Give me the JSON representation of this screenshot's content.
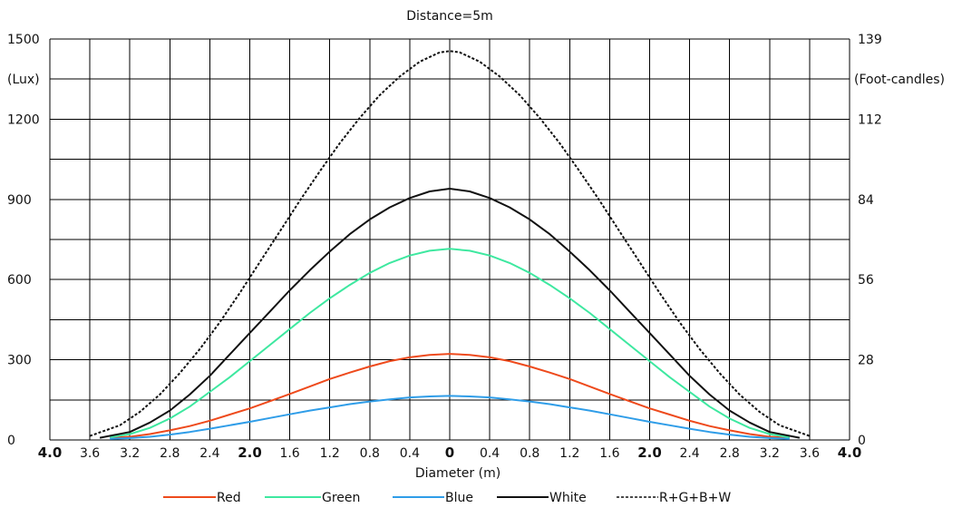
{
  "chart_data": {
    "type": "line",
    "title": "Distance=5m",
    "xlabel": "Diameter (m)",
    "ylabel_left": "(Lux)",
    "ylabel_right": "(Foot-candles)",
    "x_tick_labels": [
      "4.0",
      "3.6",
      "3.2",
      "2.8",
      "2.4",
      "2.0",
      "1.6",
      "1.2",
      "0.8",
      "0.4",
      "0",
      "0.4",
      "0.8",
      "1.2",
      "1.6",
      "2.0",
      "2.4",
      "2.8",
      "3.2",
      "3.6",
      "4.0"
    ],
    "x_bold_labels": [
      "4.0",
      "2.0",
      "0"
    ],
    "y_left_ticks": [
      0,
      300,
      600,
      900,
      1200,
      1500
    ],
    "y_right_ticks": [
      0,
      28,
      56,
      84,
      112,
      139
    ],
    "xlim": [
      -4.0,
      4.0
    ],
    "ylim": [
      0,
      1500
    ],
    "grid": true,
    "legend_position": "bottom",
    "series": [
      {
        "name": "Red",
        "color": "#ee4a1c",
        "dashed": false,
        "x": [
          -3.4,
          -3.2,
          -3.0,
          -2.8,
          -2.6,
          -2.4,
          -2.2,
          -2.0,
          -1.8,
          -1.6,
          -1.4,
          -1.2,
          -1.0,
          -0.8,
          -0.6,
          -0.4,
          -0.2,
          0,
          0.2,
          0.4,
          0.6,
          0.8,
          1.0,
          1.2,
          1.4,
          1.6,
          1.8,
          2.0,
          2.2,
          2.4,
          2.6,
          2.8,
          3.0,
          3.2,
          3.4
        ],
        "y": [
          8,
          12,
          22,
          36,
          52,
          72,
          95,
          118,
          145,
          172,
          200,
          228,
          252,
          275,
          295,
          309,
          318,
          322,
          318,
          309,
          295,
          275,
          252,
          228,
          200,
          172,
          145,
          118,
          95,
          72,
          52,
          36,
          22,
          12,
          8
        ]
      },
      {
        "name": "Green",
        "color": "#3ee8a0",
        "dashed": false,
        "x": [
          -3.4,
          -3.2,
          -3.0,
          -2.8,
          -2.6,
          -2.4,
          -2.2,
          -2.0,
          -1.8,
          -1.6,
          -1.4,
          -1.2,
          -1.0,
          -0.8,
          -0.6,
          -0.4,
          -0.2,
          0,
          0.2,
          0.4,
          0.6,
          0.8,
          1.0,
          1.2,
          1.4,
          1.6,
          1.8,
          2.0,
          2.2,
          2.4,
          2.6,
          2.8,
          3.0,
          3.2,
          3.4
        ],
        "y": [
          10,
          22,
          45,
          80,
          125,
          180,
          235,
          295,
          355,
          415,
          475,
          530,
          580,
          625,
          662,
          690,
          708,
          715,
          708,
          690,
          662,
          625,
          580,
          530,
          475,
          415,
          355,
          295,
          235,
          180,
          125,
          80,
          45,
          22,
          10
        ]
      },
      {
        "name": "Blue",
        "color": "#2f9de8",
        "dashed": false,
        "x": [
          -3.4,
          -3.2,
          -3.0,
          -2.8,
          -2.6,
          -2.4,
          -2.2,
          -2.0,
          -1.8,
          -1.6,
          -1.4,
          -1.2,
          -1.0,
          -0.8,
          -0.6,
          -0.4,
          -0.2,
          0,
          0.2,
          0.4,
          0.6,
          0.8,
          1.0,
          1.2,
          1.4,
          1.6,
          1.8,
          2.0,
          2.2,
          2.4,
          2.6,
          2.8,
          3.0,
          3.2,
          3.4
        ],
        "y": [
          4,
          7,
          12,
          20,
          30,
          42,
          55,
          68,
          82,
          96,
          110,
          122,
          134,
          144,
          152,
          159,
          163,
          165,
          163,
          159,
          152,
          144,
          134,
          122,
          110,
          96,
          82,
          68,
          55,
          42,
          30,
          20,
          12,
          7,
          4
        ]
      },
      {
        "name": "White",
        "color": "#111111",
        "dashed": false,
        "x": [
          -3.5,
          -3.2,
          -3.0,
          -2.8,
          -2.6,
          -2.4,
          -2.2,
          -2.0,
          -1.8,
          -1.6,
          -1.4,
          -1.2,
          -1.0,
          -0.8,
          -0.6,
          -0.4,
          -0.2,
          0,
          0.2,
          0.4,
          0.6,
          0.8,
          1.0,
          1.2,
          1.4,
          1.6,
          1.8,
          2.0,
          2.2,
          2.4,
          2.6,
          2.8,
          3.0,
          3.2,
          3.5
        ],
        "y": [
          8,
          30,
          65,
          110,
          170,
          240,
          320,
          400,
          480,
          560,
          635,
          705,
          770,
          825,
          870,
          905,
          930,
          940,
          930,
          905,
          870,
          825,
          770,
          705,
          635,
          560,
          480,
          400,
          320,
          240,
          170,
          110,
          65,
          30,
          8
        ]
      },
      {
        "name": "R+G+B+W",
        "color": "#111111",
        "dashed": true,
        "x": [
          -3.6,
          -3.3,
          -3.1,
          -2.9,
          -2.7,
          -2.5,
          -2.3,
          -2.1,
          -1.9,
          -1.7,
          -1.5,
          -1.3,
          -1.1,
          -0.9,
          -0.7,
          -0.5,
          -0.3,
          -0.1,
          0,
          0.1,
          0.3,
          0.5,
          0.7,
          0.9,
          1.1,
          1.3,
          1.5,
          1.7,
          1.9,
          2.1,
          2.3,
          2.5,
          2.7,
          2.9,
          3.1,
          3.3,
          3.6
        ],
        "y": [
          15,
          55,
          105,
          170,
          250,
          340,
          440,
          550,
          665,
          780,
          895,
          1005,
          1110,
          1205,
          1290,
          1360,
          1415,
          1450,
          1455,
          1450,
          1415,
          1360,
          1290,
          1205,
          1110,
          1005,
          895,
          780,
          665,
          550,
          440,
          340,
          250,
          170,
          105,
          55,
          15
        ]
      }
    ]
  }
}
